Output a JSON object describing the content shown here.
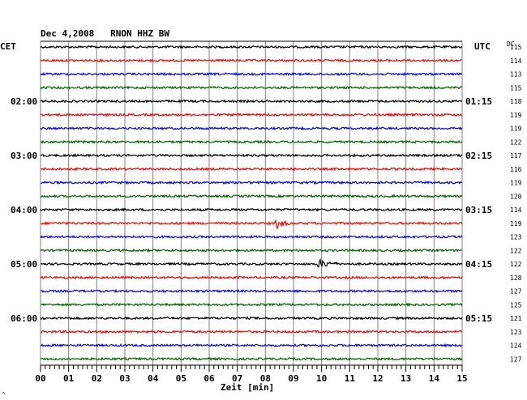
{
  "header": {
    "title": "Dec 4,2008   RNON HHZ BW",
    "left_zone": "CET",
    "right_zone": "UTC",
    "dc_label": "DC"
  },
  "footer": {
    "xlabel": "Zeit [min]",
    "corner_mark": "^"
  },
  "colors": {
    "cycle": [
      "#000000",
      "#ff0000",
      "#0000ff",
      "#006400"
    ],
    "grid": "#808080"
  },
  "chart_data": {
    "type": "line",
    "title": "Dec 4,2008   RNON HHZ BW",
    "xlabel": "Zeit [min]",
    "x_ticks": [
      "00",
      "01",
      "02",
      "03",
      "04",
      "05",
      "06",
      "07",
      "08",
      "09",
      "10",
      "11",
      "12",
      "13",
      "14",
      "15"
    ],
    "xlim": [
      0,
      15
    ],
    "traces_per_hour": 4,
    "minutes_per_trace": 15,
    "left_time_labels": [
      {
        "trace": 4,
        "text": "02:00"
      },
      {
        "trace": 8,
        "text": "03:00"
      },
      {
        "trace": 12,
        "text": "04:00"
      },
      {
        "trace": 16,
        "text": "05:00"
      },
      {
        "trace": 20,
        "text": "06:00"
      }
    ],
    "right_time_labels": [
      {
        "trace": 4,
        "text": "01:15"
      },
      {
        "trace": 8,
        "text": "02:15"
      },
      {
        "trace": 12,
        "text": "03:15"
      },
      {
        "trace": 16,
        "text": "04:15"
      },
      {
        "trace": 20,
        "text": "05:15"
      }
    ],
    "dc_offsets": [
      "115",
      "114",
      "113",
      "115",
      "118",
      "119",
      "119",
      "122",
      "117",
      "116",
      "119",
      "120",
      "114",
      "119",
      "123",
      "122",
      "122",
      "128",
      "127",
      "125",
      "121",
      "123",
      "124",
      "127"
    ],
    "events": [
      {
        "trace": 13,
        "start_min": 8.3,
        "duration_min": 1.4,
        "amplitude": 9
      },
      {
        "trace": 16,
        "start_min": 9.75,
        "duration_min": 2.2,
        "amplitude": 8
      }
    ],
    "grid": true
  }
}
